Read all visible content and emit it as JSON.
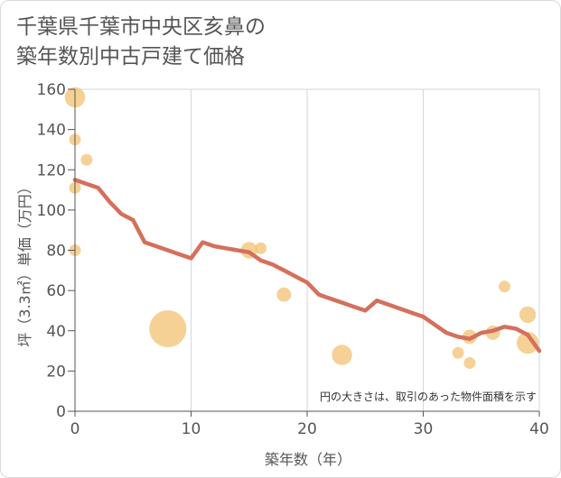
{
  "title_line1": "千葉県千葉市中央区亥鼻の",
  "title_line2": "築年数別中古戸建て価格",
  "chart_data": {
    "type": "scatter+line",
    "xlabel": "築年数（年）",
    "ylabel": "坪（3.3㎡）単価（万円）",
    "xlim": [
      0,
      40
    ],
    "ylim": [
      0,
      160
    ],
    "x_ticks": [
      0,
      10,
      20,
      30,
      40
    ],
    "y_ticks": [
      0,
      20,
      40,
      60,
      80,
      100,
      120,
      140,
      160
    ],
    "grid": true,
    "note": "円の大きさは、取引のあった物件面積を示す",
    "colors": {
      "bubble": "#f3c173",
      "line": "#d4705c",
      "grid": "#cfd8e3",
      "axis": "#555555"
    },
    "scatter": [
      {
        "x": 0,
        "y": 156,
        "size": 3
      },
      {
        "x": 0,
        "y": 135,
        "size": 1
      },
      {
        "x": 1,
        "y": 125,
        "size": 1
      },
      {
        "x": 0,
        "y": 111,
        "size": 1
      },
      {
        "x": 0,
        "y": 80,
        "size": 1
      },
      {
        "x": 8,
        "y": 41,
        "size": 10
      },
      {
        "x": 15,
        "y": 80,
        "size": 2
      },
      {
        "x": 16,
        "y": 81,
        "size": 1
      },
      {
        "x": 18,
        "y": 58,
        "size": 1.5
      },
      {
        "x": 23,
        "y": 28,
        "size": 3
      },
      {
        "x": 33,
        "y": 29,
        "size": 1
      },
      {
        "x": 34,
        "y": 24,
        "size": 1
      },
      {
        "x": 34,
        "y": 37,
        "size": 1.5
      },
      {
        "x": 36,
        "y": 39,
        "size": 1.5
      },
      {
        "x": 37,
        "y": 62,
        "size": 1
      },
      {
        "x": 39,
        "y": 48,
        "size": 2
      },
      {
        "x": 39,
        "y": 34,
        "size": 3.5
      }
    ],
    "trend_line": {
      "x": [
        0,
        1,
        2,
        3,
        4,
        5,
        6,
        7,
        8,
        9,
        10,
        11,
        12,
        13,
        14,
        15,
        16,
        17,
        18,
        19,
        20,
        21,
        22,
        23,
        24,
        25,
        26,
        27,
        28,
        29,
        30,
        31,
        32,
        33,
        34,
        35,
        36,
        37,
        38,
        39,
        40
      ],
      "y": [
        115,
        113,
        111,
        104,
        98,
        95,
        84,
        82,
        80,
        78,
        76,
        84,
        82,
        81,
        80,
        79,
        75,
        73,
        70,
        67,
        64,
        58,
        56,
        54,
        52,
        50,
        55,
        53,
        51,
        49,
        47,
        43,
        39,
        37,
        36,
        39,
        40,
        42,
        41,
        38,
        30
      ]
    }
  }
}
